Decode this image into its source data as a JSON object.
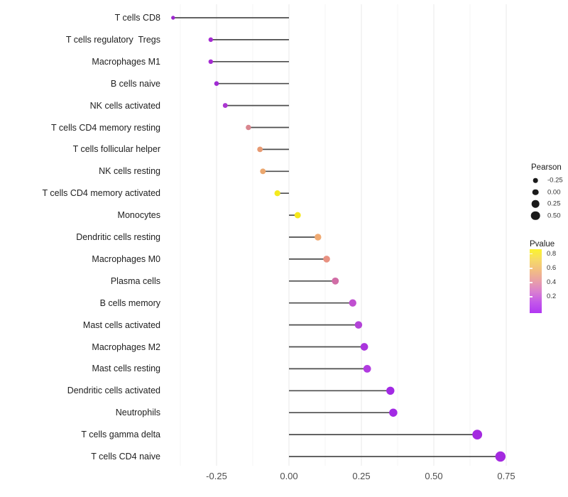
{
  "colors": {
    "background": "#ffffff",
    "stem": "#4d4d4d",
    "grid_major": "#ececec",
    "grid_minor": "#f5f5f5",
    "axis_text": "#4d4d4d",
    "category_text": "#212121",
    "legend_dot": "#1a1a1a"
  },
  "chart_data": {
    "type": "scatter",
    "variant": "lollipop",
    "title": "",
    "xlabel": "",
    "ylabel": "",
    "orientation": "horizontal",
    "baseline_x": 0,
    "grid": "vertical major and minor gridlines, no horizontal",
    "legend_position": "right",
    "categories": [
      "T cells CD8",
      "T cells regulatory  Tregs",
      "Macrophages M1",
      "B cells naive",
      "NK cells activated",
      "T cells CD4 memory resting",
      "T cells follicular helper",
      "NK cells resting",
      "T cells CD4 memory activated",
      "Monocytes",
      "Dendritic cells resting",
      "Macrophages M0",
      "Plasma cells",
      "B cells memory",
      "Mast cells activated",
      "Macrophages M2",
      "Mast cells resting",
      "Dendritic cells activated",
      "Neutrophils",
      "T cells gamma delta",
      "T cells CD4 naive"
    ],
    "values": [
      -0.4,
      -0.27,
      -0.27,
      -0.25,
      -0.22,
      -0.14,
      -0.1,
      -0.09,
      -0.04,
      0.03,
      0.1,
      0.13,
      0.16,
      0.22,
      0.24,
      0.26,
      0.27,
      0.35,
      0.36,
      0.65,
      0.73
    ],
    "point_colors": [
      "#9c27ce",
      "#a52bd2",
      "#a52bd2",
      "#a02bd3",
      "#ab36d1",
      "#d9868f",
      "#e79a72",
      "#eba76e",
      "#f4ea1e",
      "#f6e81b",
      "#f0aa72",
      "#e89181",
      "#d16da6",
      "#c04fd0",
      "#b343d8",
      "#aa34dd",
      "#b13be0",
      "#a22ae4",
      "#a22ae4",
      "#a42ae0",
      "#a42ae0"
    ],
    "xlim": [
      -0.46,
      0.78
    ],
    "x_ticks": [
      -0.25,
      0,
      0.25,
      0.5,
      0.75
    ],
    "x_tick_labels": [
      "-0.25",
      "0.00",
      "0.25",
      "0.50",
      "0.75"
    ],
    "size_legend": {
      "title": "Pearson",
      "values": [
        -0.25,
        0,
        0.25,
        0.5
      ],
      "labels": [
        "-0.25",
        "0.00",
        "0.25",
        "0.50"
      ]
    },
    "color_legend": {
      "title": "Pvalue",
      "tick_values": [
        0.8,
        0.6,
        0.4,
        0.2
      ],
      "tick_labels": [
        "0.8",
        "0.6",
        "0.4",
        "0.2"
      ],
      "gradient_stops_top_to_bottom": [
        "#fcf42d",
        "#f6da68",
        "#f2bd83",
        "#e99fa8",
        "#d97fd0",
        "#c357ea",
        "#b138f2"
      ]
    }
  }
}
